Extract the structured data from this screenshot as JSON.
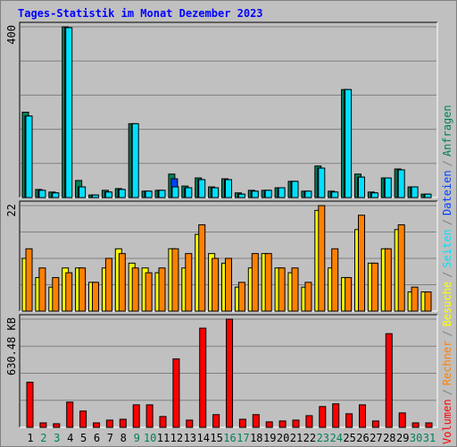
{
  "chart_data": {
    "type": "bar",
    "title": "Tages-Statistik im Monat Dezember 2023",
    "categories": [
      "1",
      "2",
      "3",
      "4",
      "5",
      "6",
      "7",
      "8",
      "9",
      "10",
      "11",
      "12",
      "13",
      "14",
      "15",
      "16",
      "17",
      "18",
      "19",
      "20",
      "21",
      "22",
      "23",
      "24",
      "25",
      "26",
      "27",
      "28",
      "29",
      "30",
      "31"
    ],
    "category_colors": [
      "#000000",
      "#00805c",
      "#00805c",
      "#000000",
      "#000000",
      "#000000",
      "#000000",
      "#000000",
      "#00805c",
      "#00805c",
      "#000000",
      "#000000",
      "#000000",
      "#000000",
      "#000000",
      "#00805c",
      "#00805c",
      "#000000",
      "#000000",
      "#000000",
      "#000000",
      "#000000",
      "#00805c",
      "#00805c",
      "#000000",
      "#000000",
      "#000000",
      "#000000",
      "#000000",
      "#00805c",
      "#00805c"
    ],
    "legend_separator": "/",
    "panels": [
      {
        "ylim": [
          0,
          400
        ],
        "yticks": [
          400
        ],
        "grid": 5,
        "series": [
          {
            "name": "Anfragen",
            "color": "#00805c",
            "values": [
              200,
              19,
              13,
              400,
              40,
              6,
              17,
              21,
              173,
              15,
              17,
              55,
              27,
              46,
              25,
              44,
              11,
              17,
              17,
              23,
              38,
              15,
              74,
              15,
              253,
              55,
              13,
              46,
              67,
              25,
              8
            ]
          },
          {
            "name": "Dateien",
            "color": "#0040ff",
            "values": [
              191,
              17,
              11,
              398,
              25,
              6,
              13,
              19,
              173,
              15,
              17,
              44,
              23,
              42,
              23,
              42,
              8,
              15,
              17,
              23,
              38,
              15,
              69,
              13,
              253,
              48,
              11,
              46,
              65,
              25,
              8
            ]
          },
          {
            "name": "Seiten",
            "color": "#00e0ff",
            "values": [
              191,
              17,
              11,
              398,
              25,
              6,
              13,
              19,
              173,
              15,
              17,
              25,
              23,
              42,
              23,
              42,
              8,
              15,
              17,
              23,
              38,
              15,
              69,
              13,
              253,
              48,
              11,
              46,
              65,
              25,
              8
            ]
          }
        ]
      },
      {
        "ylim": [
          0,
          22
        ],
        "yticks": [
          22
        ],
        "grid": 4,
        "series": [
          {
            "name": "Besuche",
            "color": "#ffff00",
            "values": [
              11,
              7,
              5,
              9,
              9,
              6,
              9,
              13,
              10,
              9,
              8,
              13,
              9,
              16,
              12,
              10,
              5,
              9,
              12,
              9,
              8,
              5,
              21,
              9,
              7,
              17,
              10,
              13,
              17,
              4,
              4
            ]
          },
          {
            "name": "Rechner",
            "color": "#ff8000",
            "values": [
              13,
              9,
              7,
              8,
              9,
              6,
              11,
              12,
              9,
              8,
              9,
              13,
              12,
              18,
              11,
              11,
              6,
              12,
              12,
              9,
              9,
              6,
              22,
              13,
              7,
              20,
              10,
              13,
              18,
              5,
              4
            ]
          }
        ]
      },
      {
        "ylim": [
          0,
          630.48
        ],
        "yticks": [
          {
            "value": 630.48,
            "label": "630.48 KB"
          }
        ],
        "grid": 4,
        "series": [
          {
            "name": "Volumen",
            "color": "#ff0000",
            "values": [
              263,
              26,
              21,
              147,
              95,
              26,
              42,
              47,
              131,
              131,
              63,
              399,
              42,
              578,
              74,
              630.48,
              47,
              74,
              32,
              37,
              42,
              68,
              121,
              137,
              79,
              131,
              37,
              546,
              84,
              26,
              26
            ]
          }
        ]
      }
    ]
  }
}
